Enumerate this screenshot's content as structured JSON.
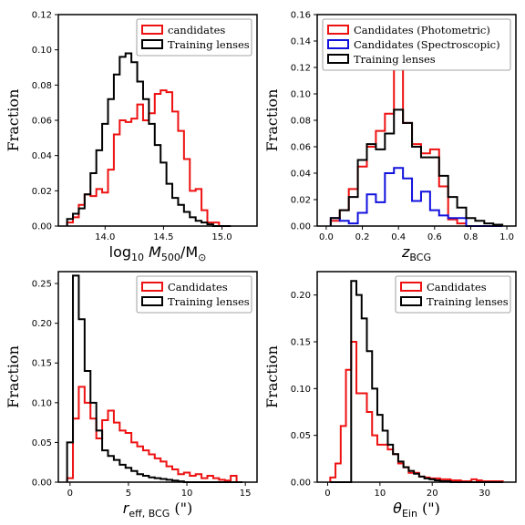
{
  "chart_data": [
    {
      "type": "line",
      "id": "mass",
      "xlabel": "log10 M500/M⊙",
      "ylabel": "Fraction",
      "xlim": [
        13.6,
        15.3
      ],
      "ylim": [
        0,
        0.12
      ],
      "xticks": [
        14.0,
        14.5,
        15.0
      ],
      "xtick_labels": [
        "14.0",
        "14.5",
        "15.0"
      ],
      "yticks": [
        0,
        0.02,
        0.04,
        0.06,
        0.08,
        0.1,
        0.12
      ],
      "ytick_labels": [
        "0.00",
        "0.02",
        "0.04",
        "0.06",
        "0.08",
        "0.10",
        "0.12"
      ],
      "legend_position": "top-right",
      "series": [
        {
          "name": "candidates",
          "color": "#ee1111",
          "x": [
            13.7,
            13.75,
            13.8,
            13.85,
            13.9,
            13.95,
            14.0,
            14.05,
            14.1,
            14.15,
            14.2,
            14.25,
            14.3,
            14.35,
            14.4,
            14.45,
            14.5,
            14.55,
            14.6,
            14.65,
            14.7,
            14.75,
            14.8,
            14.85,
            14.9,
            14.95,
            15.0,
            15.05
          ],
          "y": [
            0.002,
            0.005,
            0.012,
            0.018,
            0.017,
            0.021,
            0.019,
            0.032,
            0.052,
            0.06,
            0.059,
            0.061,
            0.069,
            0.06,
            0.064,
            0.075,
            0.077,
            0.076,
            0.065,
            0.054,
            0.038,
            0.02,
            0.021,
            0.009,
            0.002,
            0.002,
            0,
            0
          ]
        },
        {
          "name": "Training lenses",
          "color": "#000000",
          "x": [
            13.7,
            13.75,
            13.8,
            13.85,
            13.9,
            13.95,
            14.0,
            14.05,
            14.1,
            14.15,
            14.2,
            14.25,
            14.3,
            14.35,
            14.4,
            14.45,
            14.5,
            14.55,
            14.6,
            14.65,
            14.7,
            14.75,
            14.8,
            14.85,
            14.9,
            14.95,
            15.0,
            15.05
          ],
          "y": [
            0.004,
            0.007,
            0.01,
            0.018,
            0.03,
            0.043,
            0.058,
            0.072,
            0.086,
            0.096,
            0.098,
            0.093,
            0.082,
            0.072,
            0.058,
            0.046,
            0.036,
            0.024,
            0.016,
            0.012,
            0.008,
            0.005,
            0.003,
            0.002,
            0.001,
            0,
            0,
            0
          ]
        }
      ]
    },
    {
      "type": "line",
      "id": "zbcg",
      "xlabel": "zBCG",
      "ylabel": "Fraction",
      "xlim": [
        -0.05,
        1.05
      ],
      "ylim": [
        0,
        0.16
      ],
      "xticks": [
        0.0,
        0.2,
        0.4,
        0.6,
        0.8,
        1.0
      ],
      "xtick_labels": [
        "0.0",
        "0.2",
        "0.4",
        "0.6",
        "0.8",
        "1.0"
      ],
      "yticks": [
        0,
        0.02,
        0.04,
        0.06,
        0.08,
        0.1,
        0.12,
        0.14,
        0.16
      ],
      "ytick_labels": [
        "0.00",
        "0.02",
        "0.04",
        "0.06",
        "0.08",
        "0.10",
        "0.12",
        "0.14",
        "0.16"
      ],
      "legend_position": "top-right",
      "series": [
        {
          "name": "Candidates (Photometric)",
          "color": "#ee1111",
          "x": [
            0.05,
            0.1,
            0.15,
            0.2,
            0.25,
            0.3,
            0.35,
            0.4,
            0.45,
            0.5,
            0.55,
            0.6,
            0.65,
            0.7,
            0.75,
            0.8,
            0.85,
            0.9,
            0.95
          ],
          "y": [
            0.004,
            0.012,
            0.028,
            0.045,
            0.06,
            0.072,
            0.085,
            0.12,
            0.078,
            0.062,
            0.055,
            0.058,
            0.03,
            0.005,
            0.002,
            0,
            0,
            0,
            0
          ]
        },
        {
          "name": "Candidates (Spectroscopic)",
          "color": "#1111dd",
          "x": [
            0.05,
            0.1,
            0.15,
            0.2,
            0.25,
            0.3,
            0.35,
            0.4,
            0.45,
            0.5,
            0.55,
            0.6,
            0.65,
            0.7,
            0.75,
            0.8,
            0.85,
            0.9,
            0.95
          ],
          "y": [
            0.006,
            0.004,
            0.002,
            0.01,
            0.024,
            0.018,
            0.04,
            0.044,
            0.036,
            0.019,
            0.026,
            0.012,
            0.008,
            0.006,
            0.006,
            0,
            0,
            0,
            0
          ]
        },
        {
          "name": "Training lenses",
          "color": "#000000",
          "x": [
            0.05,
            0.1,
            0.15,
            0.2,
            0.25,
            0.3,
            0.35,
            0.4,
            0.45,
            0.5,
            0.55,
            0.6,
            0.65,
            0.7,
            0.75,
            0.8,
            0.85,
            0.9,
            0.95
          ],
          "y": [
            0.006,
            0.012,
            0.022,
            0.05,
            0.062,
            0.058,
            0.07,
            0.088,
            0.078,
            0.06,
            0.052,
            0.052,
            0.038,
            0.022,
            0.014,
            0.006,
            0.004,
            0.002,
            0.001
          ]
        }
      ]
    },
    {
      "type": "line",
      "id": "reff",
      "xlabel": "reff,BCG (\")",
      "ylabel": "Fraction",
      "xlim": [
        -1,
        16
      ],
      "ylim": [
        0,
        0.265
      ],
      "xticks": [
        0,
        5,
        10,
        15
      ],
      "xtick_labels": [
        "0",
        "5",
        "10",
        "15"
      ],
      "yticks": [
        0,
        0.05,
        0.1,
        0.15,
        0.2,
        0.25
      ],
      "ytick_labels": [
        "0.00",
        "0.05",
        "0.10",
        "0.15",
        "0.20",
        "0.25"
      ],
      "legend_position": "top-right",
      "series": [
        {
          "name": "Candidates",
          "color": "#ee1111",
          "x": [
            0,
            0.5,
            1,
            1.5,
            2,
            2.5,
            3,
            3.5,
            4,
            4.5,
            5,
            5.5,
            6,
            6.5,
            7,
            7.5,
            8,
            8.5,
            9,
            9.5,
            10,
            10.5,
            11,
            11.5,
            12,
            12.5,
            13,
            13.5,
            14,
            14.5
          ],
          "y": [
            0.005,
            0.08,
            0.12,
            0.1,
            0.08,
            0.055,
            0.078,
            0.09,
            0.075,
            0.065,
            0.062,
            0.05,
            0.045,
            0.04,
            0.035,
            0.03,
            0.026,
            0.02,
            0.016,
            0.01,
            0.012,
            0.008,
            0.01,
            0.005,
            0.008,
            0.005,
            0.003,
            0.002,
            0.008,
            0
          ]
        },
        {
          "name": "Training lenses",
          "color": "#000000",
          "x": [
            0,
            0.5,
            1,
            1.5,
            2,
            2.5,
            3,
            3.5,
            4,
            4.5,
            5,
            5.5,
            6,
            6.5,
            7,
            7.5,
            8,
            8.5,
            9,
            9.5,
            10,
            10.5,
            11,
            11.5,
            12,
            12.5,
            13,
            13.5,
            14,
            14.5
          ],
          "y": [
            0.05,
            0.26,
            0.205,
            0.14,
            0.1,
            0.065,
            0.04,
            0.033,
            0.028,
            0.022,
            0.018,
            0.014,
            0.01,
            0.008,
            0.006,
            0.005,
            0.004,
            0.003,
            0.002,
            0.001,
            0,
            0,
            0,
            0,
            0,
            0,
            0,
            0,
            0,
            0
          ]
        }
      ]
    },
    {
      "type": "line",
      "id": "theta",
      "xlabel": "θEin (\")",
      "ylabel": "Fraction",
      "xlim": [
        -2,
        36
      ],
      "ylim": [
        0,
        0.225
      ],
      "xticks": [
        0,
        10,
        20,
        30
      ],
      "xtick_labels": [
        "0",
        "10",
        "20",
        "30"
      ],
      "yticks": [
        0,
        0.05,
        0.1,
        0.15,
        0.2
      ],
      "ytick_labels": [
        "0.00",
        "0.05",
        "0.10",
        "0.15",
        "0.20"
      ],
      "legend_position": "top-right",
      "series": [
        {
          "name": "Candidates",
          "color": "#ee1111",
          "x": [
            1,
            2,
            3,
            4,
            5,
            6,
            7,
            8,
            9,
            10,
            11,
            12,
            13,
            14,
            15,
            16,
            17,
            18,
            19,
            20,
            21,
            22,
            23,
            24,
            25,
            26,
            27,
            28,
            29,
            30,
            31,
            32,
            33
          ],
          "y": [
            0.005,
            0.02,
            0.06,
            0.12,
            0.15,
            0.095,
            0.095,
            0.075,
            0.05,
            0.04,
            0.04,
            0.035,
            0.03,
            0.02,
            0.016,
            0.01,
            0.01,
            0.006,
            0.005,
            0.004,
            0.004,
            0.003,
            0.003,
            0.002,
            0.002,
            0.001,
            0.001,
            0.003,
            0.002,
            0.001,
            0.001,
            0.001,
            0.001
          ]
        },
        {
          "name": "Training lenses",
          "color": "#000000",
          "x": [
            1,
            2,
            3,
            4,
            5,
            6,
            7,
            8,
            9,
            10,
            11,
            12,
            13,
            14,
            15,
            16,
            17,
            18,
            19,
            20,
            21,
            22,
            23,
            24,
            25,
            26,
            27,
            28,
            29,
            30,
            31,
            32,
            33
          ],
          "y": [
            0,
            0,
            0,
            0,
            0.215,
            0.2,
            0.175,
            0.14,
            0.1,
            0.072,
            0.055,
            0.04,
            0.03,
            0.022,
            0.016,
            0.012,
            0.009,
            0.006,
            0.004,
            0.003,
            0.002,
            0.001,
            0.001,
            0,
            0,
            0,
            0,
            0,
            0,
            0,
            0,
            0,
            0
          ]
        }
      ]
    }
  ],
  "legend_icon": "rect-outline-swatch"
}
